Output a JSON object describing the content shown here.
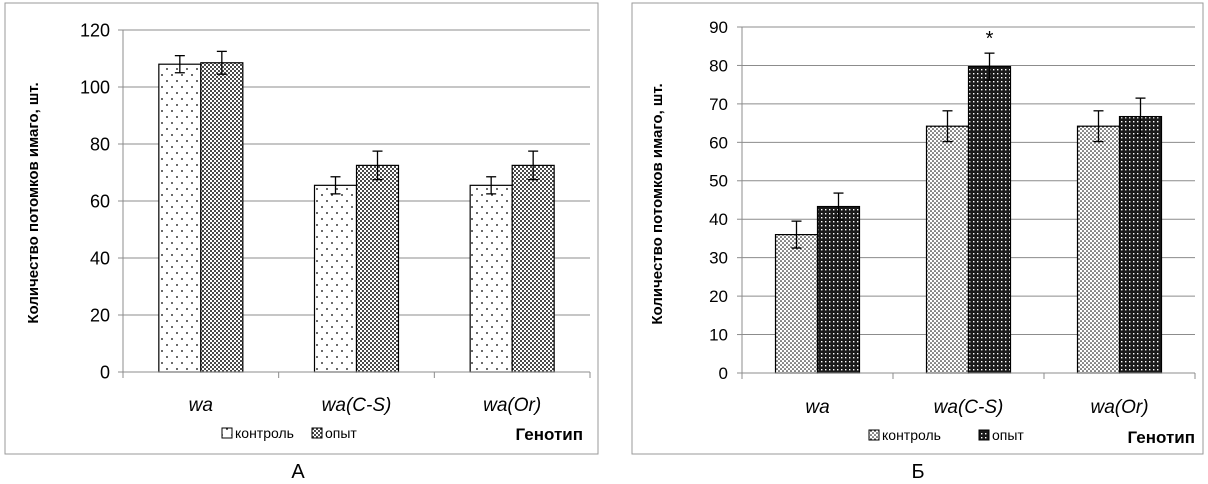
{
  "chart_data": [
    {
      "type": "bar",
      "caption": "А",
      "ylabel": "Количество потомков  имаго, шт.",
      "xlabel": "Генотип",
      "categories": [
        "wa",
        "wa(C-S)",
        "wa(Or)"
      ],
      "ylim": [
        0,
        120
      ],
      "ytick_step": 20,
      "grid": true,
      "legend": "bottom-center",
      "series": [
        {
          "name": "контроль",
          "values": [
            108,
            65.5,
            65.5
          ],
          "errors": [
            3,
            3,
            3
          ]
        },
        {
          "name": "опыт",
          "values": [
            108.5,
            72.5,
            72.5
          ],
          "errors": [
            4,
            5,
            5
          ]
        }
      ],
      "annotations": []
    },
    {
      "type": "bar",
      "caption": "Б",
      "ylabel": "Количество потомков имаго, шт.",
      "xlabel": "Генотип",
      "categories": [
        "wa",
        "wa(C-S)",
        "wa(Or)"
      ],
      "ylim": [
        0,
        90
      ],
      "ytick_step": 10,
      "grid": true,
      "legend": "bottom-center",
      "series": [
        {
          "name": "контроль",
          "values": [
            36,
            64.2,
            64.2
          ],
          "errors": [
            3.5,
            4,
            4
          ]
        },
        {
          "name": "опыт",
          "values": [
            43.3,
            79.7,
            66.7
          ],
          "errors": [
            3.5,
            3.5,
            4.8
          ]
        }
      ],
      "annotations": [
        {
          "category": "wa(C-S)",
          "series": "опыт",
          "text": "*"
        }
      ]
    }
  ]
}
